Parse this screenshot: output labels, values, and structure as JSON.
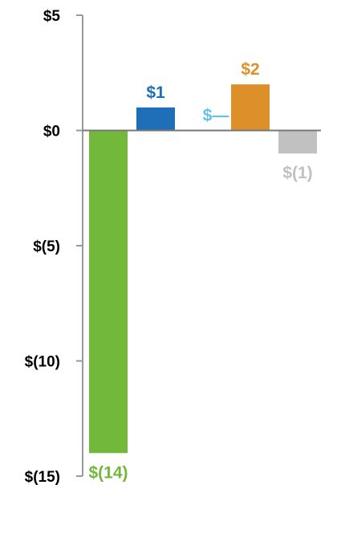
{
  "chart_data": {
    "type": "bar",
    "categories": [
      "",
      "",
      "",
      "",
      ""
    ],
    "values": [
      -14,
      1,
      0,
      2,
      -1
    ],
    "data_labels": [
      "$(14)",
      "$1",
      "$—",
      "$2",
      "$(1)"
    ],
    "colors": [
      "#72b83a",
      "#1f6fb8",
      "#5fc4e8",
      "#dd8f2a",
      "#c1c1c1"
    ],
    "ylim": [
      -15,
      5
    ],
    "yticks": [
      5,
      0,
      -5,
      -10,
      -15
    ],
    "ytick_labels": [
      "$5",
      "$0",
      "$(5)",
      "$(10)",
      "$(15)"
    ],
    "grid": false,
    "axis_color": "#999999"
  }
}
